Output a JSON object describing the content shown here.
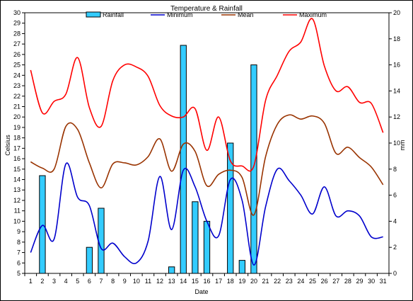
{
  "chart_data": {
    "type": "bar+line",
    "title": "Temperature & Rainfall",
    "xlabel": "Date",
    "ylabel_left": "Celsius",
    "ylabel_right": "mm",
    "ylim_left": [
      5,
      30
    ],
    "ylim_right": [
      0,
      20
    ],
    "grid": false,
    "legend_position": "top",
    "x": [
      1,
      2,
      3,
      4,
      5,
      6,
      7,
      8,
      9,
      10,
      11,
      12,
      13,
      14,
      15,
      16,
      17,
      18,
      19,
      20,
      21,
      22,
      23,
      24,
      25,
      26,
      27,
      28,
      29,
      30,
      31
    ],
    "x_ticks": [
      "1",
      "2",
      "3",
      "4",
      "5",
      "6",
      "7",
      "8",
      "9",
      "10",
      "11",
      "12",
      "13",
      "14",
      "15",
      "16",
      "17",
      "18",
      "19",
      "20",
      "21",
      "22",
      "23",
      "24",
      "25",
      "26",
      "27",
      "28",
      "29",
      "30",
      "31"
    ],
    "y_left_ticks": [
      "5",
      "6",
      "7",
      "8",
      "9",
      "10",
      "11",
      "12",
      "13",
      "14",
      "15",
      "16",
      "17",
      "18",
      "19",
      "20",
      "21",
      "22",
      "23",
      "24",
      "25",
      "26",
      "27",
      "28",
      "29",
      "30"
    ],
    "y_right_ticks": [
      "0",
      "2",
      "4",
      "6",
      "8",
      "10",
      "12",
      "14",
      "16",
      "18",
      "20"
    ],
    "series": [
      {
        "name": "Rainfall",
        "kind": "bar",
        "axis": "right",
        "color": "#33ccff",
        "values": [
          0,
          7.5,
          0,
          0,
          0,
          2.0,
          5.0,
          0,
          0,
          0,
          0,
          0,
          0.5,
          17.5,
          5.5,
          4.0,
          0,
          10.0,
          1.0,
          16.0,
          0,
          0,
          0,
          0,
          0,
          0,
          0,
          0,
          0,
          0,
          0
        ]
      },
      {
        "name": "Minimum",
        "kind": "line",
        "axis": "left",
        "color": "#0000cc",
        "values": [
          7.0,
          9.6,
          8.3,
          15.5,
          12.3,
          11.5,
          7.4,
          7.9,
          6.6,
          6.0,
          8.1,
          14.3,
          9.2,
          14.9,
          13.3,
          10.0,
          8.6,
          14.0,
          12.0,
          5.8,
          11.4,
          15.0,
          13.9,
          12.5,
          10.7,
          13.3,
          10.5,
          11.0,
          10.5,
          8.5,
          8.5
        ]
      },
      {
        "name": "Mean",
        "kind": "line",
        "axis": "left",
        "color": "#993300",
        "values": [
          15.7,
          15.1,
          15.0,
          19.1,
          18.8,
          15.6,
          13.2,
          15.5,
          15.6,
          15.4,
          16.2,
          17.9,
          14.8,
          17.4,
          16.7,
          13.4,
          14.5,
          14.9,
          14.2,
          10.6,
          16.2,
          19.3,
          20.2,
          19.8,
          20.1,
          19.4,
          16.5,
          17.1,
          16.1,
          15.2,
          13.5
        ]
      },
      {
        "name": "Maximum",
        "kind": "line",
        "axis": "left",
        "color": "#ff0000",
        "values": [
          24.5,
          20.4,
          21.5,
          22.2,
          25.7,
          20.9,
          19.1,
          23.5,
          25.0,
          24.8,
          23.9,
          21.1,
          20.1,
          20.0,
          20.8,
          16.8,
          20.0,
          15.8,
          15.3,
          15.3,
          21.6,
          24.0,
          26.3,
          27.2,
          29.4,
          24.9,
          22.5,
          22.9,
          21.4,
          21.3,
          18.5
        ]
      }
    ]
  }
}
